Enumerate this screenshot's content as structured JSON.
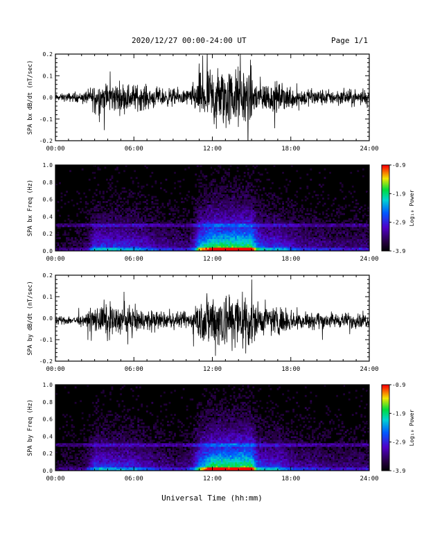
{
  "header": {
    "title": "2020/12/27  00:00-24:00 UT",
    "page": "Page 1/1"
  },
  "xlabel": "Universal Time (hh:mm)",
  "chart_data": [
    {
      "type": "line",
      "ylabel": "SPA bx dB/dt (nT/sec)",
      "xlim": [
        0,
        24
      ],
      "ylim": [
        -0.2,
        0.2
      ],
      "x_ticks": [
        "00:00",
        "06:00",
        "12:00",
        "18:00",
        "24:00"
      ],
      "y_ticks": [
        "-0.2",
        "-0.1",
        "0.0",
        "0.1",
        "0.2"
      ],
      "series": [
        {
          "x": [
            0,
            1,
            2,
            2.5,
            3,
            4,
            5,
            6,
            7,
            8,
            9,
            10,
            10.5,
            11,
            12,
            13,
            14,
            15,
            15.5,
            16,
            17,
            18,
            19,
            20,
            21,
            22,
            23,
            24
          ],
          "amplitude": [
            0.02,
            0.03,
            0.03,
            0.05,
            0.1,
            0.1,
            0.1,
            0.09,
            0.08,
            0.06,
            0.06,
            0.05,
            0.07,
            0.15,
            0.2,
            0.2,
            0.2,
            0.2,
            0.12,
            0.1,
            0.1,
            0.08,
            0.06,
            0.06,
            0.05,
            0.05,
            0.05,
            0.05
          ]
        }
      ]
    },
    {
      "type": "heatmap",
      "ylabel": "SPA bx Freq (Hz)",
      "xlim": [
        0,
        24
      ],
      "ylim": [
        0,
        1
      ],
      "x_ticks": [
        "00:00",
        "06:00",
        "12:00",
        "18:00",
        "24:00"
      ],
      "y_ticks": [
        "0.0",
        "0.2",
        "0.4",
        "0.6",
        "0.8",
        "1.0"
      ],
      "colorbar": {
        "label": "Log₁₀ Power",
        "ticks": [
          "-0.9",
          "-1.9",
          "-2.9",
          "-3.9"
        ],
        "range": [
          -3.9,
          -0.9
        ]
      }
    },
    {
      "type": "line",
      "ylabel": "SPA by dB/dt (nT/sec)",
      "xlim": [
        0,
        24
      ],
      "ylim": [
        -0.2,
        0.2
      ],
      "x_ticks": [
        "00:00",
        "06:00",
        "12:00",
        "18:00",
        "24:00"
      ],
      "y_ticks": [
        "-0.2",
        "-0.1",
        "0.0",
        "0.1",
        "0.2"
      ],
      "series": [
        {
          "x": [
            0,
            1,
            2,
            2.5,
            3,
            4,
            5,
            6,
            7,
            8,
            9,
            10,
            10.5,
            11,
            12,
            13,
            14,
            15,
            15.5,
            16,
            17,
            18,
            19,
            20,
            21,
            22,
            23,
            24
          ],
          "amplitude": [
            0.02,
            0.03,
            0.03,
            0.05,
            0.1,
            0.1,
            0.09,
            0.09,
            0.07,
            0.06,
            0.05,
            0.05,
            0.07,
            0.14,
            0.2,
            0.2,
            0.2,
            0.2,
            0.11,
            0.1,
            0.1,
            0.07,
            0.06,
            0.06,
            0.05,
            0.05,
            0.05,
            0.05
          ]
        }
      ]
    },
    {
      "type": "heatmap",
      "ylabel": "SPA by Freq (Hz)",
      "xlim": [
        0,
        24
      ],
      "ylim": [
        0,
        1
      ],
      "x_ticks": [
        "00:00",
        "06:00",
        "12:00",
        "18:00",
        "24:00"
      ],
      "y_ticks": [
        "0.0",
        "0.2",
        "0.4",
        "0.6",
        "0.8",
        "1.0"
      ],
      "colorbar": {
        "label": "Log₁₀ Power",
        "ticks": [
          "-0.9",
          "-1.9",
          "-2.9",
          "-3.9"
        ],
        "range": [
          -3.9,
          -0.9
        ]
      }
    }
  ]
}
